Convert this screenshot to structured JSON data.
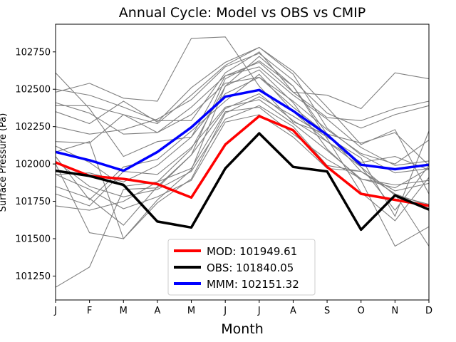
{
  "chart_data": {
    "type": "line",
    "title": "Annual Cycle: Model vs OBS vs CMIP",
    "xlabel": "Month",
    "ylabel": "Surface Pressure (Pa)",
    "categories": [
      "J",
      "F",
      "M",
      "A",
      "M",
      "J",
      "J",
      "A",
      "S",
      "O",
      "N",
      "D"
    ],
    "ylim": [
      101090,
      102935
    ],
    "yticks": [
      101250,
      101500,
      101750,
      102000,
      102250,
      102500,
      102750
    ],
    "ytick_labels": [
      "101250",
      "101500",
      "101750",
      "102000",
      "102250",
      "102500",
      "102750"
    ],
    "grid": false,
    "legend_position": "lower-center",
    "series": [
      {
        "name": "MOD: 101949.61",
        "color": "#ff0000",
        "values": [
          102010,
          101920,
          101900,
          101865,
          101775,
          102130,
          102320,
          102225,
          101980,
          101800,
          101760,
          101720
        ]
      },
      {
        "name": "OBS: 101840.05",
        "color": "#000000",
        "values": [
          101955,
          101920,
          101860,
          101615,
          101575,
          101970,
          102205,
          101980,
          101950,
          101560,
          101790,
          101695
        ]
      },
      {
        "name": "MMM: 102151.32",
        "color": "#0000ff",
        "values": [
          102080,
          102025,
          101955,
          102080,
          102245,
          102450,
          102495,
          102355,
          102195,
          101995,
          101965,
          101995
        ]
      }
    ],
    "ensemble": {
      "color": "#808080",
      "members": [
        [
          101175,
          101310,
          101830,
          101840,
          102060,
          102570,
          102690,
          102520,
          102170,
          101810,
          101620,
          101910
        ],
        [
          101720,
          101690,
          101750,
          101880,
          101970,
          102350,
          102380,
          102200,
          102030,
          101900,
          101840,
          101970
        ],
        [
          101930,
          101830,
          101700,
          101780,
          101890,
          102280,
          102330,
          102180,
          101970,
          101950,
          101800,
          101720
        ],
        [
          102020,
          101850,
          101780,
          101830,
          101950,
          102300,
          102390,
          102250,
          101990,
          101950,
          101820,
          101870
        ],
        [
          102610,
          102370,
          102050,
          102150,
          102180,
          102590,
          102650,
          102460,
          102300,
          102110,
          101990,
          102020
        ],
        [
          102480,
          102540,
          102440,
          102420,
          102840,
          102850,
          102520,
          102280,
          102200,
          101950,
          101800,
          101450
        ],
        [
          102390,
          102390,
          102330,
          102270,
          102460,
          102660,
          102780,
          102600,
          102240,
          102060,
          101940,
          101970
        ],
        [
          101850,
          101770,
          101590,
          101850,
          102060,
          102370,
          102470,
          102290,
          102150,
          101980,
          101790,
          101730
        ],
        [
          102120,
          102010,
          101850,
          101880,
          102100,
          102520,
          102630,
          102410,
          102100,
          101890,
          101450,
          101580
        ],
        [
          102000,
          101540,
          101500,
          101760,
          101960,
          102520,
          102720,
          102520,
          102200,
          101980,
          101690,
          101990
        ],
        [
          102080,
          102150,
          101500,
          101740,
          101900,
          102340,
          102450,
          102320,
          102180,
          102040,
          101650,
          102220
        ],
        [
          102250,
          102200,
          102230,
          102300,
          102430,
          102650,
          102740,
          102560,
          102340,
          102240,
          102330,
          102390
        ],
        [
          101930,
          101940,
          101880,
          101990,
          102180,
          102470,
          102580,
          102380,
          102200,
          102140,
          102210,
          101990
        ],
        [
          102350,
          102270,
          102420,
          102280,
          102510,
          102680,
          102780,
          102620,
          102380,
          102130,
          102230,
          101800
        ],
        [
          102500,
          102460,
          102380,
          102290,
          102290,
          102610,
          102750,
          102480,
          102460,
          102370,
          102610,
          102570
        ],
        [
          102050,
          101760,
          101980,
          102030,
          102220,
          102420,
          102600,
          102350,
          102150,
          102010,
          102050,
          101960
        ],
        [
          102150,
          102140,
          102330,
          102210,
          102330,
          102540,
          102580,
          102420,
          102230,
          102070,
          102000,
          102160
        ],
        [
          101800,
          101720,
          101950,
          101930,
          102110,
          102380,
          102430,
          102270,
          102090,
          101900,
          101860,
          101890
        ],
        [
          102410,
          102340,
          102200,
          102210,
          102380,
          102590,
          102680,
          102480,
          102310,
          102290,
          102370,
          102420
        ]
      ]
    }
  }
}
